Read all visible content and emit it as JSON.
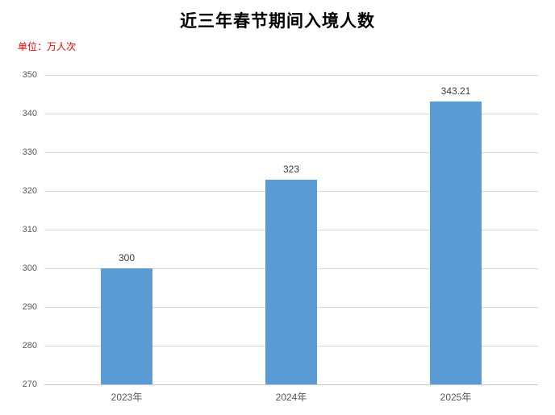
{
  "header": {
    "title": "近三年春节期间入境人数",
    "unit_label": "单位：万人次"
  },
  "colors": {
    "background": "#FFFFFF",
    "title": "#000000",
    "unit_label": "#FF0000",
    "bar": "#5B9BD5",
    "gridline": "#D9D9D9",
    "axis_line": "#C8C8C8",
    "tick_label": "#595959",
    "data_label": "#404040"
  },
  "chart_data": {
    "type": "bar",
    "title": "近三年春节期间入境人数",
    "unit_label": "单位：万人次",
    "categories": [
      "2023年",
      "2024年",
      "2025年"
    ],
    "values": [
      300,
      323,
      343.21
    ],
    "data_labels": [
      "300",
      "323",
      "343.21"
    ],
    "xlabel": "",
    "ylabel": "",
    "ylim": [
      270,
      350
    ],
    "ytick_step": 10,
    "yticks": [
      350,
      340,
      330,
      320,
      310,
      300,
      290,
      280,
      270
    ],
    "grid": true,
    "legend": false,
    "bar_color": "#5B9BD5"
  }
}
